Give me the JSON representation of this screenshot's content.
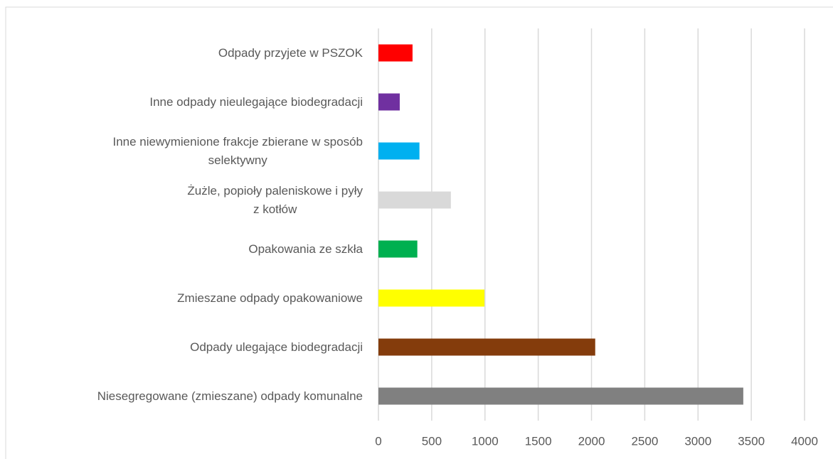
{
  "chart_data": {
    "type": "bar",
    "orientation": "horizontal",
    "categories": [
      "Odpady przyjete w PSZOK",
      "Inne odpady nieulegające biodegradacji",
      "Inne niewymienione frakcje zbierane w sposób\nselektywny",
      "Żużle, popioły paleniskowe i pyły\nz kotłów",
      "Opakowania ze szkła",
      "Zmieszane odpady opakowaniowe",
      "Odpady ulegające biodegradacji",
      "Niesegregowane (zmieszane) odpady komunalne"
    ],
    "values": [
      320,
      200,
      385,
      680,
      365,
      995,
      2035,
      3425
    ],
    "colors": [
      "#ff0000",
      "#7030a0",
      "#00b0f0",
      "#d9d9d9",
      "#00b050",
      "#ffff00",
      "#843c0c",
      "#808080"
    ],
    "xlim": [
      0,
      4000
    ],
    "xticks": [
      0,
      500,
      1000,
      1500,
      2000,
      2500,
      3000,
      3500,
      4000
    ],
    "grid": true
  }
}
